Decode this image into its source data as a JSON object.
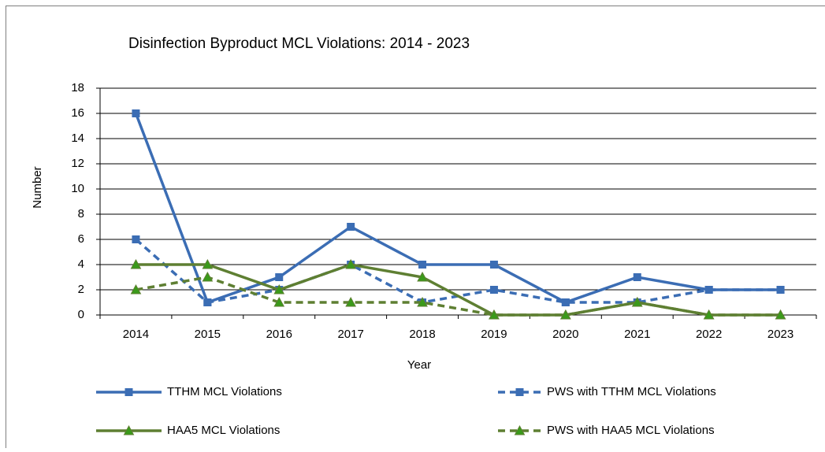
{
  "chart_data": {
    "type": "line",
    "title": "Disinfection Byproduct MCL Violations: 2014 - 2023",
    "x_label": "Year",
    "y_label": "Number",
    "categories": [
      "2014",
      "2015",
      "2016",
      "2017",
      "2018",
      "2019",
      "2020",
      "2021",
      "2022",
      "2023"
    ],
    "series": [
      {
        "name": "TTHM MCL Violations",
        "color": "#3b6db4",
        "marker": "square",
        "dashed": false,
        "values": [
          16,
          1,
          3,
          7,
          4,
          4,
          1,
          3,
          2,
          2
        ]
      },
      {
        "name": "PWS with TTHM MCL Violations",
        "color": "#3b6db4",
        "marker": "square",
        "dashed": true,
        "values": [
          6,
          1,
          2,
          4,
          1,
          2,
          1,
          1,
          2,
          2
        ]
      },
      {
        "name": "HAA5 MCL Violations",
        "color": "#5e7f32",
        "marker": "triangle",
        "dashed": false,
        "values": [
          4,
          4,
          2,
          4,
          3,
          0,
          0,
          1,
          0,
          0
        ]
      },
      {
        "name": "PWS with HAA5 MCL Violations",
        "color": "#5e7f32",
        "marker": "triangle",
        "dashed": true,
        "values": [
          2,
          3,
          1,
          1,
          1,
          0,
          0,
          1,
          0,
          0
        ]
      }
    ],
    "ylim": [
      0,
      18
    ],
    "yticks": [
      0,
      2,
      4,
      6,
      8,
      10,
      12,
      14,
      16,
      18
    ],
    "grid": true
  }
}
